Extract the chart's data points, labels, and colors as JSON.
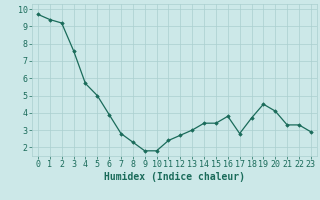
{
  "x": [
    0,
    1,
    2,
    3,
    4,
    5,
    6,
    7,
    8,
    9,
    10,
    11,
    12,
    13,
    14,
    15,
    16,
    17,
    18,
    19,
    20,
    21,
    22,
    23
  ],
  "y": [
    9.7,
    9.4,
    9.2,
    7.6,
    5.7,
    5.0,
    3.9,
    2.8,
    2.3,
    1.8,
    1.8,
    2.4,
    2.7,
    3.0,
    3.4,
    3.4,
    3.8,
    2.8,
    3.7,
    4.5,
    4.1,
    3.3,
    3.3,
    2.9
  ],
  "xlabel": "Humidex (Indice chaleur)",
  "ylim": [
    1.5,
    10.3
  ],
  "xlim": [
    -0.5,
    23.5
  ],
  "yticks": [
    2,
    3,
    4,
    5,
    6,
    7,
    8,
    9,
    10
  ],
  "xticks": [
    0,
    1,
    2,
    3,
    4,
    5,
    6,
    7,
    8,
    9,
    10,
    11,
    12,
    13,
    14,
    15,
    16,
    17,
    18,
    19,
    20,
    21,
    22,
    23
  ],
  "line_color": "#1a6b5a",
  "marker": "D",
  "marker_size": 1.8,
  "bg_color": "#cce8e8",
  "grid_color": "#aacfcf",
  "axis_label_color": "#1a6b5a",
  "tick_label_color": "#1a6b5a",
  "xlabel_fontsize": 7.0,
  "tick_fontsize": 6.0,
  "linewidth": 0.9
}
